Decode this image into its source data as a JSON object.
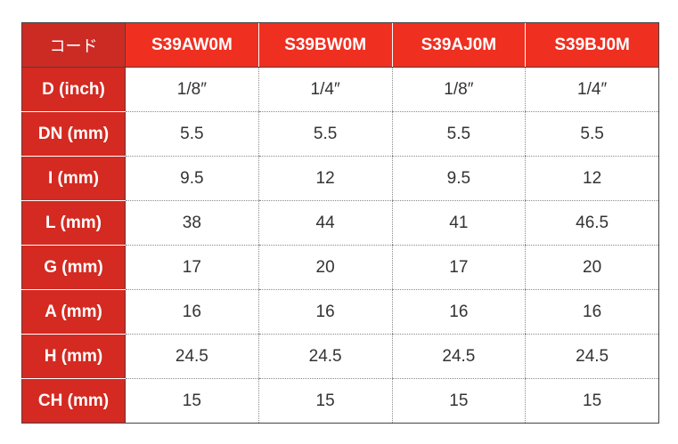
{
  "table": {
    "corner_label": "コード",
    "columns": [
      "S39AW0M",
      "S39BW0M",
      "S39AJ0M",
      "S39BJ0M"
    ],
    "rows": [
      {
        "label": "D (inch)",
        "values": [
          "1/8″",
          "1/4″",
          "1/8″",
          "1/4″"
        ]
      },
      {
        "label": "DN (mm)",
        "values": [
          "5.5",
          "5.5",
          "5.5",
          "5.5"
        ]
      },
      {
        "label": "I (mm)",
        "values": [
          "9.5",
          "12",
          "9.5",
          "12"
        ]
      },
      {
        "label": "L (mm)",
        "values": [
          "38",
          "44",
          "41",
          "46.5"
        ]
      },
      {
        "label": "G (mm)",
        "values": [
          "17",
          "20",
          "17",
          "20"
        ]
      },
      {
        "label": "A (mm)",
        "values": [
          "16",
          "16",
          "16",
          "16"
        ]
      },
      {
        "label": "H (mm)",
        "values": [
          "24.5",
          "24.5",
          "24.5",
          "24.5"
        ]
      },
      {
        "label": "CH (mm)",
        "values": [
          "15",
          "15",
          "15",
          "15"
        ]
      }
    ]
  },
  "colors": {
    "header_red": "#ef2f20",
    "row_header_red": "#d42a21",
    "corner_red": "#cc2b24",
    "text_white": "#ffffff",
    "text_dark": "#333333"
  }
}
